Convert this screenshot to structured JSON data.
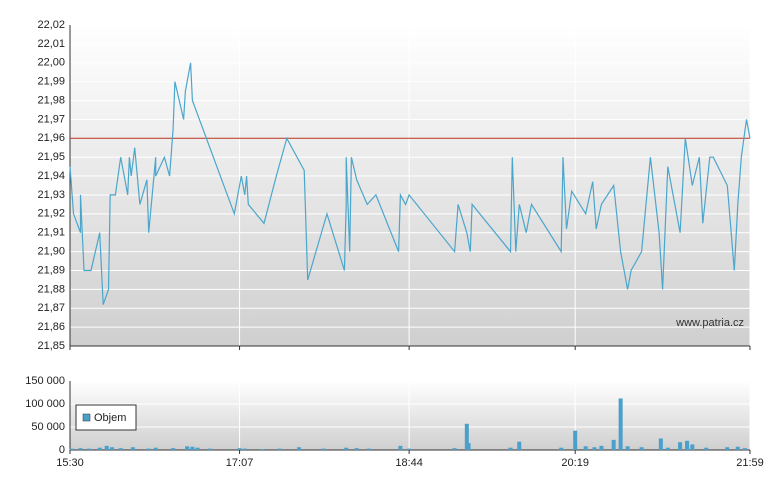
{
  "chart_data": [
    {
      "type": "line",
      "color": "#4ba6cc",
      "watermark": "www.patria.cz",
      "reference_line": {
        "value": 21.96,
        "color": "#b5301f"
      },
      "xlim": [
        930,
        1319
      ],
      "ylim": [
        21.85,
        22.02
      ],
      "yticks": [
        {
          "value": 21.85,
          "label": "21,85"
        },
        {
          "value": 21.86,
          "label": "21,86"
        },
        {
          "value": 21.87,
          "label": "21,87"
        },
        {
          "value": 21.88,
          "label": "21,88"
        },
        {
          "value": 21.89,
          "label": "21,89"
        },
        {
          "value": 21.9,
          "label": "21,90"
        },
        {
          "value": 21.91,
          "label": "21,91"
        },
        {
          "value": 21.92,
          "label": "21,92"
        },
        {
          "value": 21.93,
          "label": "21,93"
        },
        {
          "value": 21.94,
          "label": "21,94"
        },
        {
          "value": 21.95,
          "label": "21,95"
        },
        {
          "value": 21.96,
          "label": "21,96"
        },
        {
          "value": 21.97,
          "label": "21,97"
        },
        {
          "value": 21.98,
          "label": "21,98"
        },
        {
          "value": 21.99,
          "label": "21,99"
        },
        {
          "value": 22.0,
          "label": "22,00"
        },
        {
          "value": 22.01,
          "label": "22,01"
        },
        {
          "value": 22.02,
          "label": "22,02"
        }
      ],
      "grid": true,
      "x": [
        930,
        932,
        936,
        936,
        938,
        942,
        947,
        949,
        952,
        953,
        956,
        959,
        963,
        964,
        965,
        967,
        970,
        974,
        975,
        979,
        979,
        984,
        987,
        989,
        990,
        995,
        996,
        999,
        1000,
        1004,
        1024,
        1028,
        1030,
        1031,
        1032,
        1041,
        1048,
        1054,
        1064,
        1066,
        1077,
        1087,
        1088,
        1088,
        1090,
        1091,
        1094,
        1100,
        1105,
        1118,
        1119,
        1122,
        1124,
        1150,
        1152,
        1157,
        1159,
        1160,
        1182,
        1183,
        1185,
        1187,
        1191,
        1194,
        1211,
        1212,
        1214,
        1217,
        1225,
        1229,
        1231,
        1234,
        1241,
        1245,
        1249,
        1251,
        1257,
        1262,
        1267,
        1269,
        1272,
        1279,
        1282,
        1286,
        1290,
        1292,
        1296,
        1298,
        1306,
        1310,
        1312,
        1314,
        1317,
        1319
      ],
      "values": [
        21.945,
        21.92,
        21.91,
        21.93,
        21.89,
        21.89,
        21.91,
        21.872,
        21.88,
        21.93,
        21.93,
        21.95,
        21.93,
        21.95,
        21.94,
        21.955,
        21.925,
        21.938,
        21.91,
        21.95,
        21.94,
        21.95,
        21.94,
        21.965,
        21.99,
        21.97,
        21.985,
        22.0,
        21.98,
        21.97,
        21.92,
        21.94,
        21.93,
        21.94,
        21.925,
        21.915,
        21.94,
        21.96,
        21.943,
        21.885,
        21.92,
        21.89,
        21.925,
        21.95,
        21.9,
        21.95,
        21.938,
        21.925,
        21.93,
        21.9,
        21.93,
        21.925,
        21.93,
        21.9,
        21.925,
        21.91,
        21.9,
        21.925,
        21.9,
        21.95,
        21.9,
        21.925,
        21.91,
        21.925,
        21.9,
        21.95,
        21.912,
        21.932,
        21.92,
        21.937,
        21.912,
        21.925,
        21.935,
        21.9,
        21.88,
        21.89,
        21.9,
        21.95,
        21.91,
        21.88,
        21.945,
        21.91,
        21.96,
        21.935,
        21.95,
        21.915,
        21.95,
        21.95,
        21.935,
        21.89,
        21.925,
        21.95,
        21.97,
        21.96
      ]
    },
    {
      "type": "bar",
      "xlim": [
        930,
        1319
      ],
      "ylim": [
        0,
        150000
      ],
      "xticks": [
        {
          "value": 930,
          "label": "15:30"
        },
        {
          "value": 1027,
          "label": "17:07"
        },
        {
          "value": 1124,
          "label": "18:44"
        },
        {
          "value": 1219,
          "label": "20:19"
        },
        {
          "value": 1319,
          "label": "21:59"
        }
      ],
      "yticks": [
        0,
        {
          "value": 50000,
          "label": "50 000"
        },
        {
          "value": 100000,
          "label": "100 000"
        },
        {
          "value": 150000,
          "label": "150 000"
        }
      ],
      "grid": true,
      "series": [
        {
          "name": "Objem",
          "color": "#4a9fcb",
          "x": [
            931,
            936,
            941,
            947,
            951,
            954,
            959,
            966,
            975,
            979,
            989,
            997,
            1000,
            1003,
            1010,
            1027,
            1030,
            1040,
            1050,
            1061,
            1075,
            1088,
            1094,
            1101,
            1119,
            1124,
            1150,
            1157,
            1158,
            1182,
            1187,
            1211,
            1219,
            1225,
            1230,
            1234,
            1241,
            1245,
            1249,
            1257,
            1268,
            1272,
            1279,
            1283,
            1286,
            1294,
            1306,
            1312,
            1316
          ],
          "values": [
            3000,
            4000,
            3000,
            5000,
            9000,
            6000,
            4000,
            6000,
            3000,
            5000,
            4000,
            8000,
            7000,
            5000,
            3000,
            4000,
            3000,
            2000,
            3000,
            6000,
            3000,
            5000,
            4000,
            3000,
            9000,
            3000,
            4000,
            57000,
            15000,
            5000,
            18000,
            5000,
            42000,
            8000,
            6000,
            9000,
            22000,
            112000,
            8000,
            6000,
            25000,
            5000,
            17000,
            20000,
            12000,
            5000,
            6000,
            7000,
            4000
          ]
        }
      ]
    }
  ]
}
